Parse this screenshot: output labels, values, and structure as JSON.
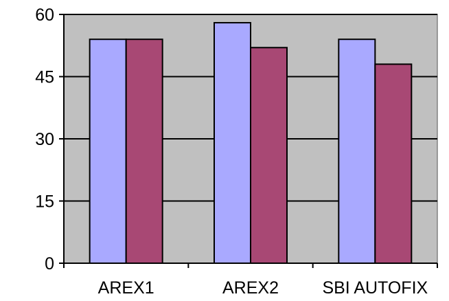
{
  "chart_data": {
    "type": "bar",
    "categories": [
      "AREX1",
      "AREX2",
      "SBI AUTOFIX"
    ],
    "series": [
      {
        "values": [
          54,
          58,
          54
        ],
        "color": "#a9a9ff"
      },
      {
        "values": [
          54,
          52,
          48
        ],
        "color": "#a84874"
      }
    ],
    "ylim": [
      0,
      60
    ],
    "yticks": [
      0,
      15,
      30,
      45,
      60
    ],
    "grid": true,
    "plot_background": "#c0c0c0",
    "legend": "none"
  }
}
